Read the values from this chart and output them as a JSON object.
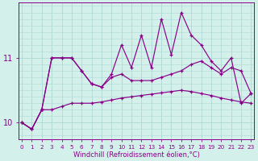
{
  "xlabel": "Windchill (Refroidissement éolien,°C)",
  "background_color": "#d4f0eb",
  "line_color": "#880088",
  "grid_color": "#aed9d4",
  "hours": [
    0,
    1,
    2,
    3,
    4,
    5,
    6,
    7,
    8,
    9,
    10,
    11,
    12,
    13,
    14,
    15,
    16,
    17,
    18,
    19,
    20,
    21,
    22,
    23
  ],
  "line_spiky": [
    10.0,
    9.9,
    10.2,
    11.0,
    11.0,
    11.0,
    10.8,
    10.6,
    10.55,
    10.75,
    11.2,
    10.85,
    11.35,
    10.85,
    11.6,
    11.05,
    11.7,
    11.35,
    11.2,
    10.95,
    10.8,
    11.0,
    10.3,
    10.45
  ],
  "line_mid": [
    10.0,
    9.9,
    10.2,
    11.0,
    11.0,
    11.0,
    10.8,
    10.6,
    10.55,
    10.7,
    10.75,
    10.65,
    10.65,
    10.65,
    10.7,
    10.75,
    10.8,
    10.9,
    10.95,
    10.85,
    10.75,
    10.85,
    10.8,
    10.45
  ],
  "line_flat": [
    10.0,
    9.9,
    10.2,
    10.2,
    10.25,
    10.3,
    10.3,
    10.3,
    10.32,
    10.35,
    10.38,
    10.4,
    10.42,
    10.44,
    10.46,
    10.48,
    10.5,
    10.48,
    10.45,
    10.42,
    10.38,
    10.35,
    10.32,
    10.3
  ],
  "ylim": [
    9.75,
    11.85
  ],
  "yticks": [
    10,
    11
  ],
  "xticks": [
    0,
    1,
    2,
    3,
    4,
    5,
    6,
    7,
    8,
    9,
    10,
    11,
    12,
    13,
    14,
    15,
    16,
    17,
    18,
    19,
    20,
    21,
    22,
    23
  ]
}
